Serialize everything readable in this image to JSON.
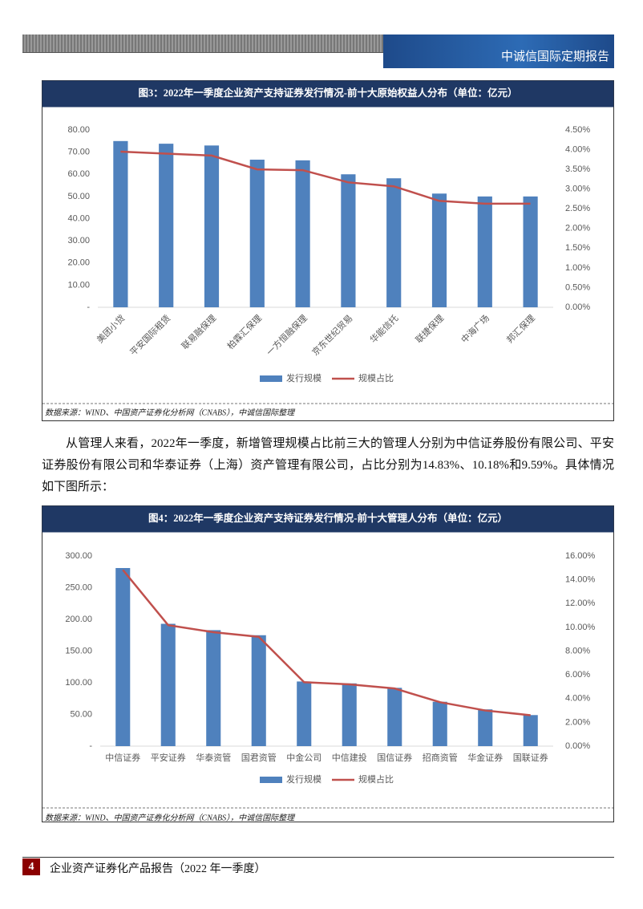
{
  "document": {
    "header": "中诚信国际定期报告",
    "paragraph": "从管理人来看，2022年一季度，新增管理规模占比前三大的管理人分别为中信证券股份有限公司、平安证券股份有限公司和华泰证券（上海）资产管理有限公司，占比分别为14.83%、10.18%和9.59%。具体情况如下图所示：",
    "page_number": "4",
    "footer": "企业资产证券化产品报告（2022 年一季度）"
  },
  "chart_data": [
    {
      "type": "combo",
      "title": "图3：2022年一季度企业资产支持证券发行情况-前十大原始权益人分布（单位：亿元）",
      "categories": [
        "美团小贷",
        "平安国际租赁",
        "联易融保理",
        "柏霖汇保理",
        "一方恒融保理",
        "京东世纪贸易",
        "华能信托",
        "联捷保理",
        "中海广场",
        "邦汇保理"
      ],
      "series": [
        {
          "name": "发行规模",
          "kind": "bar",
          "color": "#4f81bd",
          "values": [
            75,
            73.8,
            73,
            66.6,
            66.3,
            60,
            58.2,
            51.3,
            50,
            50
          ]
        },
        {
          "name": "规模占比",
          "kind": "line",
          "axis": "y2",
          "color": "#c0504d",
          "values": [
            3.95,
            3.9,
            3.85,
            3.5,
            3.48,
            3.17,
            3.07,
            2.7,
            2.63,
            2.63
          ]
        }
      ],
      "ylim": [
        0,
        80
      ],
      "yticks": [
        {
          "value": 0,
          "label": "-"
        },
        {
          "value": 10,
          "label": "10.00"
        },
        {
          "value": 20,
          "label": "20.00"
        },
        {
          "value": 30,
          "label": "30.00"
        },
        {
          "value": 40,
          "label": "40.00"
        },
        {
          "value": 50,
          "label": "50.00"
        },
        {
          "value": 60,
          "label": "60.00"
        },
        {
          "value": 70,
          "label": "70.00"
        },
        {
          "value": 80,
          "label": "80.00"
        }
      ],
      "y2lim": [
        0,
        4.5
      ],
      "y2ticks": [
        {
          "value": 0,
          "label": "0.00%"
        },
        {
          "value": 0.5,
          "label": "0.50%"
        },
        {
          "value": 1,
          "label": "1.00%"
        },
        {
          "value": 1.5,
          "label": "1.50%"
        },
        {
          "value": 2,
          "label": "2.00%"
        },
        {
          "value": 2.5,
          "label": "2.50%"
        },
        {
          "value": 3,
          "label": "3.00%"
        },
        {
          "value": 3.5,
          "label": "3.50%"
        },
        {
          "value": 4,
          "label": "4.00%"
        },
        {
          "value": 4.5,
          "label": "4.50%"
        }
      ],
      "rotate_labels": true,
      "source": "数据来源：WIND、中国资产证券化分析网（CNABS），中诚信国际整理"
    },
    {
      "type": "combo",
      "title": "图4：2022年一季度企业资产支持证券发行情况-前十大管理人分布（单位：亿元）",
      "categories": [
        "中信证券",
        "平安证券",
        "华泰资管",
        "国君资管",
        "中金公司",
        "中信建投",
        "国信证券",
        "招商资管",
        "华金证券",
        "国联证券"
      ],
      "series": [
        {
          "name": "发行规模",
          "kind": "bar",
          "color": "#4f81bd",
          "values": [
            281,
            193,
            183,
            175,
            102,
            99,
            92,
            70,
            58,
            49
          ]
        },
        {
          "name": "规模占比",
          "kind": "line",
          "axis": "y2",
          "color": "#c0504d",
          "values": [
            14.83,
            10.18,
            9.59,
            9.2,
            5.38,
            5.2,
            4.85,
            3.7,
            3.0,
            2.6
          ]
        }
      ],
      "ylim": [
        0,
        300
      ],
      "yticks": [
        {
          "value": 0,
          "label": "-"
        },
        {
          "value": 50,
          "label": "50.00"
        },
        {
          "value": 100,
          "label": "100.00"
        },
        {
          "value": 150,
          "label": "150.00"
        },
        {
          "value": 200,
          "label": "200.00"
        },
        {
          "value": 250,
          "label": "250.00"
        },
        {
          "value": 300,
          "label": "300.00"
        }
      ],
      "y2lim": [
        0,
        16
      ],
      "y2ticks": [
        {
          "value": 0,
          "label": "0.00%"
        },
        {
          "value": 2,
          "label": "2.00%"
        },
        {
          "value": 4,
          "label": "4.00%"
        },
        {
          "value": 6,
          "label": "6.00%"
        },
        {
          "value": 8,
          "label": "8.00%"
        },
        {
          "value": 10,
          "label": "10.00%"
        },
        {
          "value": 12,
          "label": "12.00%"
        },
        {
          "value": 14,
          "label": "14.00%"
        },
        {
          "value": 16,
          "label": "16.00%"
        }
      ],
      "rotate_labels": false,
      "source": "数据来源：WIND、中国资产证券化分析网（CNABS），中诚信国际整理"
    }
  ]
}
